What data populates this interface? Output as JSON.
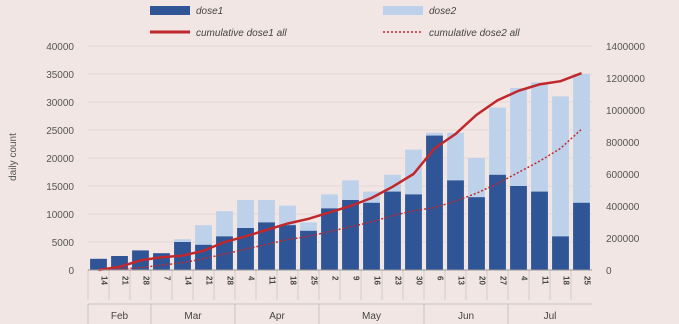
{
  "chart_data": {
    "type": "bar",
    "ylabel": "daily count",
    "y2label": "",
    "ylim": [
      0,
      40000
    ],
    "y2lim": [
      0,
      1400000
    ],
    "yticks": [
      "40000",
      "35000",
      "30000",
      "25000",
      "20000",
      "15000",
      "10000",
      "5000",
      "0"
    ],
    "y2ticks": [
      "1400000",
      "1200000",
      "1000000",
      "800000",
      "600000",
      "400000",
      "200000",
      "0"
    ],
    "legend": {
      "dose1": "dose1",
      "dose2": "dose2",
      "cum1": "cumulative dose1 all",
      "cum2": "cumulative dose2 all"
    },
    "date_ticks": [
      "14",
      "21",
      "28",
      "7",
      "14",
      "21",
      "28",
      "4",
      "11",
      "18",
      "25",
      "2",
      "9",
      "16",
      "23",
      "30",
      "6",
      "13",
      "20",
      "27",
      "4",
      "11",
      "18",
      "25"
    ],
    "months": [
      "Feb",
      "Mar",
      "Apr",
      "May",
      "Jun",
      "Jul"
    ],
    "colors": {
      "dose1": "#2f5596",
      "dose2": "#bdd2ea",
      "cum1": "#c0282d",
      "cum2": "#c0282d"
    },
    "series": [
      {
        "name": "dose1",
        "values": [
          2000,
          2500,
          3500,
          3000,
          5000,
          4500,
          6000,
          7500,
          8500,
          8000,
          7000,
          11000,
          12500,
          12000,
          14000,
          13500,
          24000,
          16000,
          13000,
          17000,
          15000,
          14000,
          6000,
          12000
        ]
      },
      {
        "name": "dose2",
        "values": [
          0,
          0,
          500,
          3000,
          5500,
          8000,
          10500,
          12500,
          12500,
          11500,
          8500,
          13500,
          16000,
          14000,
          17000,
          21500,
          24500,
          24500,
          20000,
          29000,
          32500,
          33500,
          31000,
          35000
        ]
      },
      {
        "name": "cumulative dose1 all",
        "values": [
          0,
          20000,
          60000,
          80000,
          90000,
          120000,
          175000,
          210000,
          250000,
          290000,
          320000,
          360000,
          400000,
          450000,
          520000,
          600000,
          760000,
          850000,
          970000,
          1060000,
          1120000,
          1160000,
          1180000,
          1230000
        ]
      },
      {
        "name": "cumulative dose2 all",
        "values": [
          0,
          5000,
          15000,
          30000,
          45000,
          70000,
          100000,
          130000,
          160000,
          190000,
          210000,
          240000,
          270000,
          300000,
          340000,
          370000,
          390000,
          430000,
          480000,
          540000,
          610000,
          680000,
          760000,
          880000
        ]
      }
    ]
  }
}
